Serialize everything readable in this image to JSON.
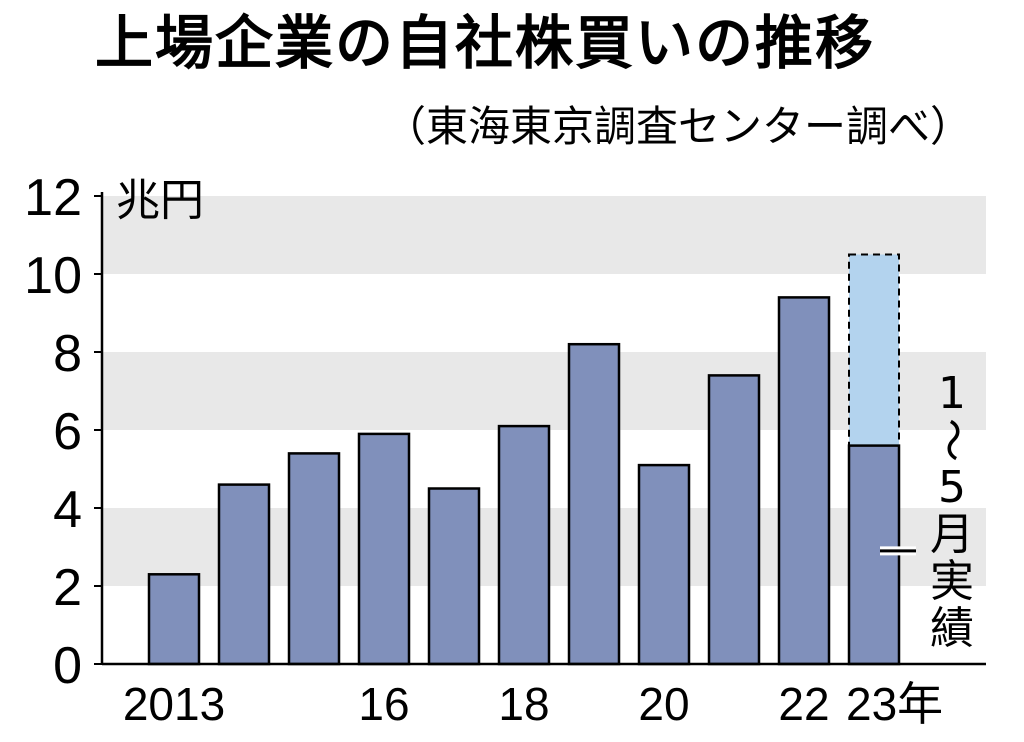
{
  "title": "上場企業の自社株買いの推移",
  "source": "（東海東京調査センター調べ）",
  "chart_data": {
    "type": "bar",
    "title": "上場企業の自社株買いの推移",
    "unit_label": "兆円",
    "ylim": [
      0,
      12
    ],
    "yticks": [
      "0",
      "2",
      "4",
      "6",
      "8",
      "10",
      "12"
    ],
    "x_tick_labels": [
      "2013",
      "",
      "",
      "16",
      "",
      "18",
      "",
      "20",
      "",
      "22",
      "23年"
    ],
    "categories": [
      "2013",
      "2014",
      "2015",
      "2016",
      "2017",
      "2018",
      "2019",
      "2020",
      "2021",
      "2022",
      "2023"
    ],
    "series": [
      {
        "name": "",
        "color": "#8090bb",
        "values": [
          2.3,
          4.6,
          5.4,
          5.9,
          4.5,
          6.1,
          8.2,
          5.1,
          7.4,
          9.4,
          5.6
        ]
      }
    ],
    "projection": {
      "category": "2023",
      "total": 10.5,
      "color": "#b3d3ee",
      "style": "dashed"
    },
    "annotation": {
      "text": "1〜5月実績",
      "chars": [
        "1",
        "〜",
        "5",
        "月",
        "実",
        "績"
      ]
    },
    "grid": "alternating horizontal bands"
  }
}
